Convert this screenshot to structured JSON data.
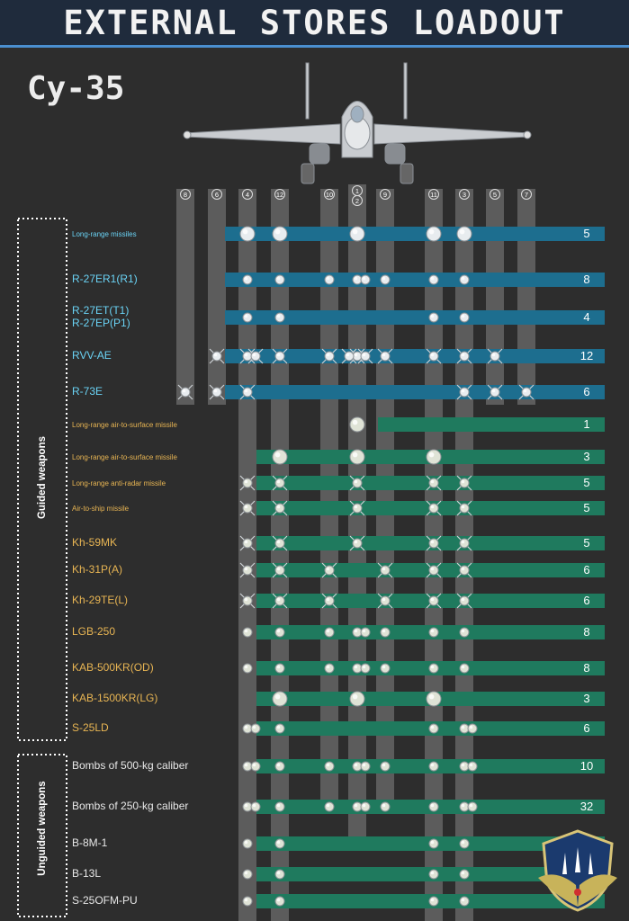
{
  "header": {
    "title": "EXTERNAL STORES LOADOUT"
  },
  "aircraft": {
    "name": "Су-35"
  },
  "stations": [
    "8",
    "6",
    "4",
    "12",
    "10",
    "1",
    "2",
    "9",
    "11",
    "3",
    "5",
    "7"
  ],
  "groups": {
    "guided": "Guided weapons",
    "unguided": "Unguided weapons"
  },
  "weapons": [
    {
      "label": "Long-range missiles",
      "count": "5",
      "category": "aa",
      "small": true
    },
    {
      "label": "R-27ER1(R1)",
      "count": "8",
      "category": "aa"
    },
    {
      "label": "R-27ET(T1)",
      "label2": "R-27EP(P1)",
      "count": "4",
      "category": "aa"
    },
    {
      "label": "RVV-AE",
      "count": "12",
      "category": "aa"
    },
    {
      "label": "R-73E",
      "count": "6",
      "category": "aa"
    },
    {
      "label": "Long-range air-to-surface missile",
      "count": "1",
      "category": "ag",
      "small": true
    },
    {
      "label": "Long-range air-to-surface missile",
      "count": "3",
      "category": "ag",
      "small": true
    },
    {
      "label": "Long-range anti-radar missile",
      "count": "5",
      "category": "ag",
      "small": true
    },
    {
      "label": "Air-to-ship missile",
      "count": "5",
      "category": "ag",
      "small": true
    },
    {
      "label": "Kh-59MK",
      "count": "5",
      "category": "ag"
    },
    {
      "label": "Kh-31P(A)",
      "count": "6",
      "category": "ag"
    },
    {
      "label": "Kh-29TE(L)",
      "count": "6",
      "category": "ag"
    },
    {
      "label": "LGB-250",
      "count": "8",
      "category": "ag"
    },
    {
      "label": "KAB-500KR(OD)",
      "count": "8",
      "category": "ag"
    },
    {
      "label": "KAB-1500KR(LG)",
      "count": "3",
      "category": "ag"
    },
    {
      "label": "S-25LD",
      "count": "6",
      "category": "ag"
    },
    {
      "label": "Bombs of 500-kg caliber",
      "count": "10",
      "category": "ug"
    },
    {
      "label": "Bombs of 250-kg caliber",
      "count": "32",
      "category": "ug"
    },
    {
      "label": "B-8M-1",
      "count": "",
      "category": "ug"
    },
    {
      "label": "B-13L",
      "count": "",
      "category": "ug"
    },
    {
      "label": "S-25OFM-PU",
      "count": "",
      "category": "ug"
    }
  ],
  "colors": {
    "aa_bar": "#1d6e8f",
    "ag_bar": "#1f7a5e",
    "pylon": "#5c5c5c",
    "aa_text": "#6ad3f5",
    "ag_text": "#e8b553"
  }
}
